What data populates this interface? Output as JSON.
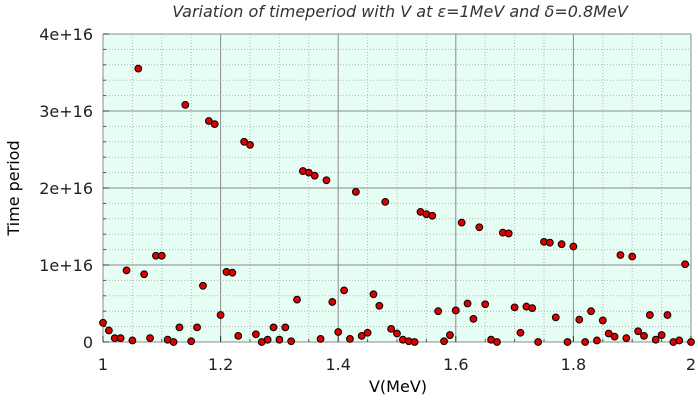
{
  "chart_data": {
    "type": "scatter",
    "title": "Variation of timeperiod with V at ε=1MeV and δ=0.8MeV",
    "xlabel": "V(MeV)",
    "ylabel": "Time period",
    "xlim": [
      1,
      2
    ],
    "ylim": [
      0,
      4e+16
    ],
    "xticks": [
      1,
      1.2,
      1.4,
      1.6,
      1.8,
      2
    ],
    "xtick_labels": [
      "1",
      "1.2",
      "1.4",
      "1.6",
      "1.8",
      "2"
    ],
    "yticks": [
      0,
      1e+16,
      2e+16,
      3e+16,
      4e+16
    ],
    "ytick_labels": [
      "0",
      "1e+16",
      "2e+16",
      "3e+16",
      "4e+16"
    ],
    "grid": true,
    "minor_grid": true,
    "legend": "none",
    "colors": {
      "plot_background": "#e6fdf3",
      "marker_fill": "#dd0000",
      "marker_edge": "#000000",
      "major_grid": "#8c8c8c",
      "minor_grid": "#b5b5b5"
    },
    "x": [
      1.0,
      1.01,
      1.02,
      1.03,
      1.04,
      1.05,
      1.06,
      1.07,
      1.08,
      1.09,
      1.1,
      1.11,
      1.12,
      1.13,
      1.14,
      1.15,
      1.16,
      1.17,
      1.18,
      1.19,
      1.2,
      1.21,
      1.22,
      1.23,
      1.24,
      1.25,
      1.26,
      1.27,
      1.28,
      1.29,
      1.3,
      1.31,
      1.32,
      1.33,
      1.34,
      1.35,
      1.36,
      1.37,
      1.38,
      1.39,
      1.4,
      1.41,
      1.42,
      1.43,
      1.44,
      1.45,
      1.46,
      1.47,
      1.48,
      1.49,
      1.5,
      1.51,
      1.52,
      1.53,
      1.54,
      1.55,
      1.56,
      1.57,
      1.58,
      1.59,
      1.6,
      1.61,
      1.62,
      1.63,
      1.64,
      1.65,
      1.66,
      1.67,
      1.68,
      1.69,
      1.7,
      1.71,
      1.72,
      1.73,
      1.74,
      1.75,
      1.76,
      1.77,
      1.78,
      1.79,
      1.8,
      1.81,
      1.82,
      1.83,
      1.84,
      1.85,
      1.86,
      1.87,
      1.88,
      1.89,
      1.9,
      1.91,
      1.92,
      1.93,
      1.94,
      1.95,
      1.96,
      1.97,
      1.98,
      1.99,
      2.0
    ],
    "y": [
      2500000000000000.0,
      1500000000000000.0,
      500000000000000.0,
      500000000000000.0,
      9300000000000000.0,
      200000000000000.0,
      3.55e+16,
      8800000000000000.0,
      500000000000000.0,
      1.12e+16,
      1.12e+16,
      300000000000000.0,
      0,
      1900000000000000.0,
      3.08e+16,
      100000000000000.0,
      1900000000000000.0,
      7300000000000000.0,
      2.87e+16,
      2.83e+16,
      3500000000000000.0,
      9100000000000000.0,
      9000000000000000.0,
      800000000000000.0,
      2.6e+16,
      2.56e+16,
      1000000000000000.0,
      0,
      300000000000000.0,
      1900000000000000.0,
      300000000000000.0,
      1900000000000000.0,
      100000000000000.0,
      5500000000000000.0,
      2.22e+16,
      2.2e+16,
      2.16e+16,
      400000000000000.0,
      2.1e+16,
      5200000000000000.0,
      1300000000000000.0,
      6700000000000000.0,
      400000000000000.0,
      1.95e+16,
      800000000000000.0,
      1200000000000000.0,
      6200000000000000.0,
      4700000000000000.0,
      1.82e+16,
      1700000000000000.0,
      1100000000000000.0,
      300000000000000.0,
      100000000000000.0,
      0,
      1.69e+16,
      1.66e+16,
      1.64e+16,
      4000000000000000.0,
      100000000000000.0,
      900000000000000.0,
      4100000000000000.0,
      1.55e+16,
      5000000000000000.0,
      3000000000000000.0,
      1.49e+16,
      4900000000000000.0,
      300000000000000.0,
      0,
      1.42e+16,
      1.41e+16,
      4500000000000000.0,
      1200000000000000.0,
      4600000000000000.0,
      4400000000000000.0,
      0,
      1.3e+16,
      1.29e+16,
      3200000000000000.0,
      1.27e+16,
      0,
      1.24e+16,
      2900000000000000.0,
      0,
      4000000000000000.0,
      200000000000000.0,
      2800000000000000.0,
      1100000000000000.0,
      700000000000000.0,
      1.13e+16,
      500000000000000.0,
      1.11e+16,
      1400000000000000.0,
      800000000000000.0,
      3500000000000000.0,
      300000000000000.0,
      900000000000000.0,
      3500000000000000.0,
      0,
      200000000000000.0,
      1.01e+16,
      0
    ]
  }
}
